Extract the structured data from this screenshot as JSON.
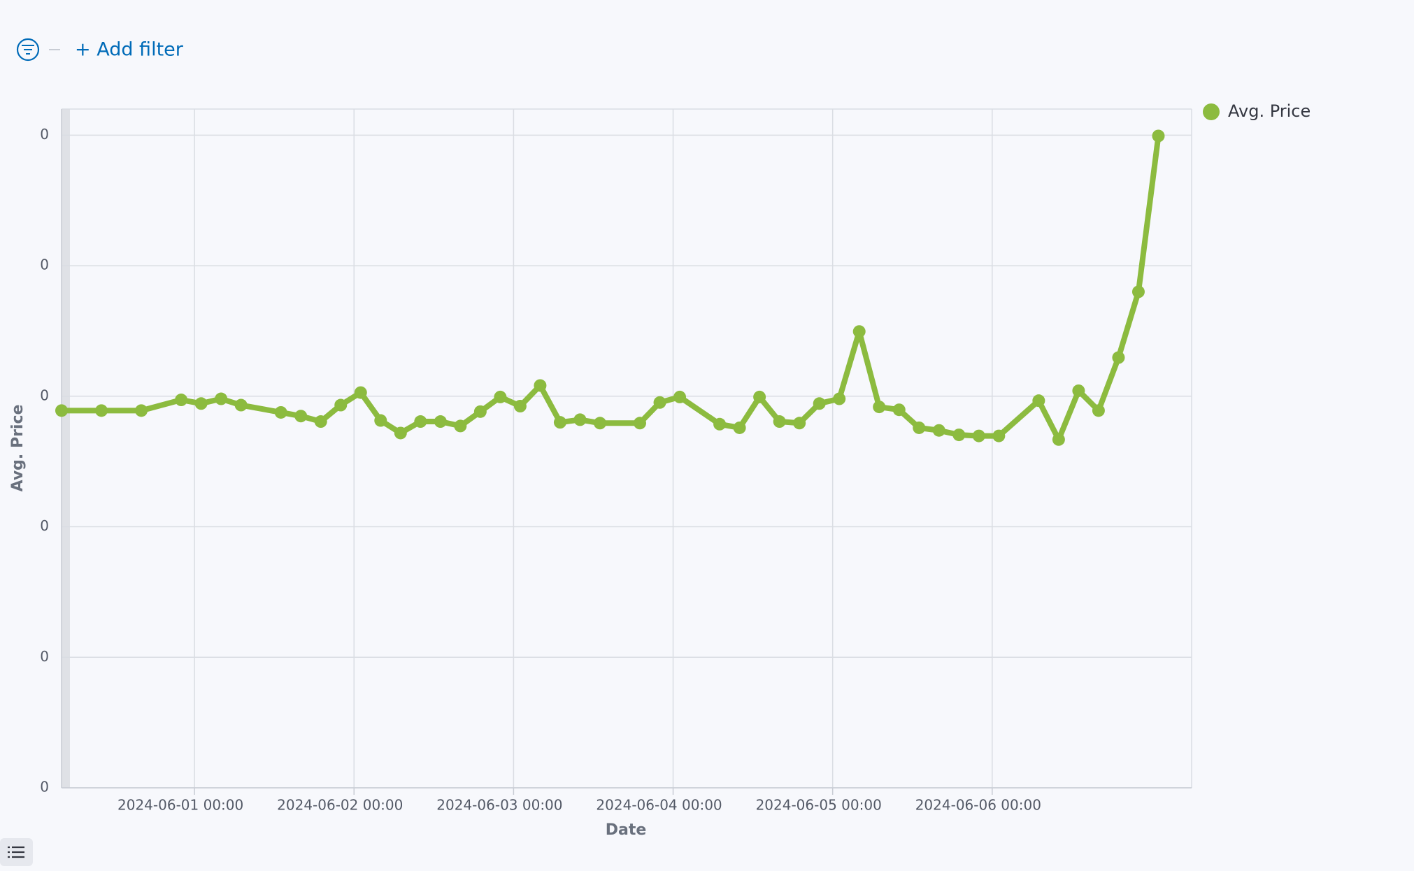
{
  "filter_bar": {
    "add_filter": "+ Add filter"
  },
  "chart_data": {
    "type": "line",
    "x_label": "Date",
    "y_label": "Avg. Price",
    "x": [
      "2024-05-31 04:00",
      "2024-05-31 10:00",
      "2024-05-31 16:00",
      "2024-05-31 22:00",
      "2024-06-01 01:00",
      "2024-06-01 04:00",
      "2024-06-01 07:00",
      "2024-06-01 13:00",
      "2024-06-01 16:00",
      "2024-06-01 19:00",
      "2024-06-01 22:00",
      "2024-06-02 01:00",
      "2024-06-02 04:00",
      "2024-06-02 07:00",
      "2024-06-02 10:00",
      "2024-06-02 13:00",
      "2024-06-02 16:00",
      "2024-06-02 19:00",
      "2024-06-02 22:00",
      "2024-06-03 01:00",
      "2024-06-03 04:00",
      "2024-06-03 07:00",
      "2024-06-03 10:00",
      "2024-06-03 13:00",
      "2024-06-03 19:00",
      "2024-06-03 22:00",
      "2024-06-04 01:00",
      "2024-06-04 07:00",
      "2024-06-04 10:00",
      "2024-06-04 13:00",
      "2024-06-04 16:00",
      "2024-06-04 19:00",
      "2024-06-04 22:00",
      "2024-06-05 01:00",
      "2024-06-05 04:00",
      "2024-06-05 07:00",
      "2024-06-05 10:00",
      "2024-06-05 13:00",
      "2024-06-05 16:00",
      "2024-06-05 19:00",
      "2024-06-05 22:00",
      "2024-06-06 01:00",
      "2024-06-06 07:00",
      "2024-06-06 10:00",
      "2024-06-06 13:00",
      "2024-06-06 16:00",
      "2024-06-06 19:00",
      "2024-06-06 22:00",
      "2024-06-07 01:00"
    ],
    "series": [
      {
        "name": "Avg. Price",
        "color": "#8cbb3f",
        "values": [
          0.1445,
          0.1445,
          0.1445,
          0.1486,
          0.1472,
          0.149,
          0.1466,
          0.1438,
          0.1424,
          0.1403,
          0.1466,
          0.1514,
          0.1407,
          0.1359,
          0.1403,
          0.1403,
          0.1386,
          0.1441,
          0.1497,
          0.1462,
          0.1541,
          0.14,
          0.141,
          0.1397,
          0.1397,
          0.1476,
          0.1497,
          0.1393,
          0.1379,
          0.1497,
          0.1403,
          0.1397,
          0.1472,
          0.149,
          0.1748,
          0.1459,
          0.1448,
          0.1379,
          0.1369,
          0.1352,
          0.1348,
          0.1348,
          0.1483,
          0.1334,
          0.1521,
          0.1445,
          0.1648,
          0.19,
          0.2497
        ]
      }
    ],
    "xlim": [
      "2024-05-31 04:00",
      "2024-06-07 06:00"
    ],
    "xticks": [
      "2024-06-01 00:00",
      "2024-06-02 00:00",
      "2024-06-03 00:00",
      "2024-06-04 00:00",
      "2024-06-05 00:00",
      "2024-06-06 00:00"
    ],
    "ylim": [
      0,
      0.26
    ],
    "yticks": [
      0,
      {
        "value": 0.05,
        "label": "0"
      },
      {
        "value": 0.1,
        "label": "0"
      },
      {
        "value": 0.15,
        "label": "0"
      },
      {
        "value": 0.2,
        "label": "0"
      },
      {
        "value": 0.25,
        "label": "0"
      }
    ],
    "grid": true,
    "legend": "right"
  }
}
